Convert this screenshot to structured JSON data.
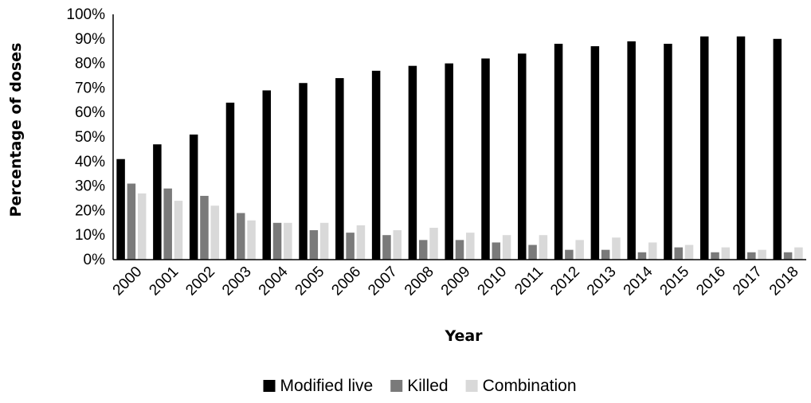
{
  "chart_data": {
    "type": "bar",
    "title": "",
    "xlabel": "Year",
    "ylabel": "Percentage of doses",
    "ylim": [
      0,
      100
    ],
    "yticks": [
      "0%",
      "10%",
      "20%",
      "30%",
      "40%",
      "50%",
      "60%",
      "70%",
      "80%",
      "90%",
      "100%"
    ],
    "categories": [
      "2000",
      "2001",
      "2002",
      "2003",
      "2004",
      "2005",
      "2006",
      "2007",
      "2008",
      "2009",
      "2010",
      "2011",
      "2012",
      "2013",
      "2014",
      "2015",
      "2016",
      "2017",
      "2018"
    ],
    "series": [
      {
        "name": "Modified live",
        "color": "#000000",
        "values": [
          41,
          47,
          51,
          64,
          69,
          72,
          74,
          77,
          79,
          80,
          82,
          84,
          88,
          87,
          89,
          88,
          91,
          91,
          90
        ]
      },
      {
        "name": "Killed",
        "color": "#7a7a7a",
        "values": [
          31,
          29,
          26,
          19,
          15,
          12,
          11,
          10,
          8,
          8,
          7,
          6,
          4,
          4,
          3,
          5,
          3,
          3,
          3
        ]
      },
      {
        "name": "Combination",
        "color": "#d9d9d9",
        "values": [
          27,
          24,
          22,
          16,
          15,
          15,
          14,
          12,
          13,
          11,
          10,
          10,
          8,
          9,
          7,
          6,
          5,
          4,
          5
        ]
      }
    ],
    "grid": false,
    "legend_position": "bottom"
  }
}
